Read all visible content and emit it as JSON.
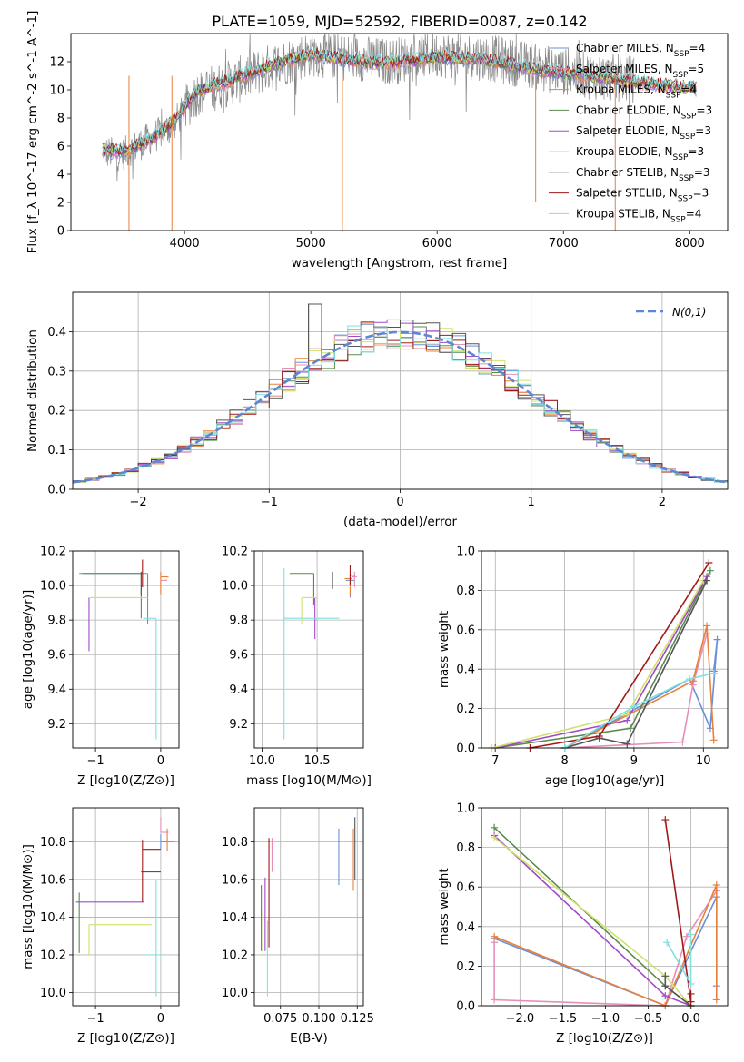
{
  "title": "PLATE=1059, MJD=52592, FIBERID=0087, z=0.142",
  "colors": {
    "chabrier_miles": "#6b8fd6",
    "salpeter_miles": "#e58fb8",
    "kroupa_miles": "#e8813a",
    "chabrier_elodie": "#5b8a4e",
    "salpeter_elodie": "#a24bc8",
    "kroupa_elodie": "#cfe26a",
    "chabrier_stelib": "#555555",
    "salpeter_stelib": "#a01a1a",
    "kroupa_stelib": "#7fe0e0",
    "data": "#888888",
    "normal": "#5b87d4"
  },
  "chart_data": [
    {
      "type": "line",
      "name": "spectrum",
      "xlabel": "wavelength [Angstrom, rest frame]",
      "ylabel": "Flux [f_λ 10^-17 erg cm^-2 s^-1 A^-1]",
      "xlim": [
        3100,
        8300
      ],
      "ylim": [
        0,
        14
      ],
      "xticks": [
        "4000",
        "5000",
        "6000",
        "7000",
        "8000"
      ],
      "yticks": [
        "0",
        "2",
        "4",
        "6",
        "8",
        "10",
        "12"
      ],
      "x": [
        3350,
        3500,
        3700,
        3900,
        4100,
        4400,
        4700,
        5000,
        5300,
        5600,
        6000,
        6400,
        6800,
        7200,
        7600,
        8050
      ],
      "data_flux": [
        5.6,
        5.4,
        6.4,
        7.4,
        9.8,
        10.6,
        11.7,
        12.6,
        12.3,
        12.0,
        12.5,
        12.3,
        11.6,
        11.0,
        10.7,
        10.2
      ],
      "model_flux": [
        5.7,
        5.6,
        6.3,
        7.6,
        9.9,
        10.8,
        11.8,
        12.5,
        12.1,
        11.9,
        12.3,
        12.1,
        11.4,
        11.0,
        10.5,
        10.1
      ],
      "grid": false,
      "legend": [
        "Chabrier MILES, N_SSP=4",
        "Salpeter MILES, N_SSP=5",
        "Kroupa MILES, N_SSP=4",
        "Chabrier ELODIE, N_SSP=3",
        "Salpeter ELODIE, N_SSP=3",
        "Kroupa ELODIE, N_SSP=3",
        "Chabrier STELIB, N_SSP=3",
        "Salpeter STELIB, N_SSP=3",
        "Kroupa STELIB, N_SSP=4"
      ]
    },
    {
      "type": "line",
      "name": "residual-histogram",
      "xlabel": "(data-model)/error",
      "ylabel": "Normed distribution",
      "xlim": [
        -2.5,
        2.5
      ],
      "ylim": [
        0,
        0.5
      ],
      "xticks": [
        "−2",
        "−1",
        "0",
        "1",
        "2"
      ],
      "yticks": [
        "0.0",
        "0.1",
        "0.2",
        "0.3",
        "0.4"
      ],
      "legend": [
        "N(0,1)"
      ],
      "grid": true
    },
    {
      "type": "scatter",
      "name": "age-vs-Z",
      "xlabel": "Z [log10(Z/Z⊙)]",
      "ylabel": "age [log10(age/yr)]",
      "xlim": [
        -1.35,
        0.28
      ],
      "ylim": [
        9.06,
        10.2
      ],
      "xticks": [
        "−1",
        "0"
      ],
      "yticks": [
        "9.2",
        "9.4",
        "9.6",
        "9.8",
        "10.0",
        "10.2"
      ],
      "points": [
        {
          "x": -0.2,
          "xerr": [
            1.05,
            0.0
          ],
          "y": 10.07,
          "yerr": [
            0.29,
            0.0
          ]
        },
        {
          "x": 0.0,
          "xerr": [
            0.0,
            0.1
          ],
          "y": 10.03,
          "yerr": [
            0.08,
            0.04
          ]
        },
        {
          "x": 0.0,
          "xerr": [
            0.0,
            0.12
          ],
          "y": 10.05,
          "yerr": [
            0.1,
            0.03
          ]
        },
        {
          "x": -0.3,
          "xerr": [
            0.9,
            0.0
          ],
          "y": 10.07,
          "yerr": [
            0.26,
            0.0
          ]
        },
        {
          "x": -1.1,
          "xerr": [
            0.0,
            0.0
          ],
          "y": 9.93,
          "yerr": [
            0.31,
            0.0
          ]
        },
        {
          "x": -0.2,
          "xerr": [
            0.9,
            0.0
          ],
          "y": 9.93,
          "yerr": [
            0.0,
            0.0
          ]
        },
        {
          "x": -0.3,
          "xerr": [
            0.0,
            0.0
          ],
          "y": 10.06,
          "yerr": [
            0.12,
            0.02
          ]
        },
        {
          "x": -0.28,
          "xerr": [
            0.0,
            0.0
          ],
          "y": 10.07,
          "yerr": [
            0.08,
            0.08
          ]
        },
        {
          "x": -0.07,
          "xerr": [
            0.2,
            0.0
          ],
          "y": 9.81,
          "yerr": [
            0.7,
            0.0
          ]
        }
      ]
    },
    {
      "type": "scatter",
      "name": "age-vs-mass",
      "xlabel": "mass [log10(M/M⊙)]",
      "ylabel": "",
      "xlim": [
        9.93,
        10.92
      ],
      "ylim": [
        9.06,
        10.2
      ],
      "xticks": [
        "10.0",
        "10.5"
      ],
      "yticks": [
        "9.2",
        "9.4",
        "9.6",
        "9.8",
        "10.0",
        "10.2"
      ],
      "points": [
        {
          "x": 10.8,
          "xerr": [
            0.04,
            0.04
          ],
          "y": 10.03,
          "yerr": [
            0.1,
            0.04
          ]
        },
        {
          "x": 10.84,
          "xerr": [
            0.02,
            0.02
          ],
          "y": 10.05,
          "yerr": [
            0.06,
            0.03
          ]
        },
        {
          "x": 10.8,
          "xerr": [
            0.05,
            0.02
          ],
          "y": 10.04,
          "yerr": [
            0.1,
            0.02
          ]
        },
        {
          "x": 10.47,
          "xerr": [
            0.22,
            0.0
          ],
          "y": 10.07,
          "yerr": [
            0.18,
            0.0
          ]
        },
        {
          "x": 10.48,
          "xerr": [
            0.0,
            0.0
          ],
          "y": 9.93,
          "yerr": [
            0.24,
            0.0
          ]
        },
        {
          "x": 10.36,
          "xerr": [
            0.0,
            0.14
          ],
          "y": 9.93,
          "yerr": [
            0.15,
            0.0
          ]
        },
        {
          "x": 10.64,
          "xerr": [
            0.0,
            0.0
          ],
          "y": 10.06,
          "yerr": [
            0.08,
            0.02
          ]
        },
        {
          "x": 10.8,
          "xerr": [
            0.0,
            0.05
          ],
          "y": 10.06,
          "yerr": [
            0.06,
            0.06
          ]
        },
        {
          "x": 10.2,
          "xerr": [
            0.0,
            0.5
          ],
          "y": 9.81,
          "yerr": [
            0.7,
            0.29
          ]
        }
      ]
    },
    {
      "type": "line",
      "name": "mass-weight-vs-age",
      "xlabel": "age [log10(age/yr)]",
      "ylabel": "mass weight",
      "xlim": [
        6.8,
        10.35
      ],
      "ylim": [
        0,
        1
      ],
      "xticks": [
        "7",
        "8",
        "9",
        "10"
      ],
      "yticks": [
        "0.0",
        "0.2",
        "0.4",
        "0.6",
        "0.8",
        "1.0"
      ],
      "grid": true,
      "series": [
        {
          "x": [
            8.0,
            9.8,
            10.1,
            10.2,
            10.15
          ],
          "y": [
            0.0,
            0.35,
            0.1,
            0.55,
            0.39
          ]
        },
        {
          "x": [
            8.0,
            9.7,
            9.85,
            10.05
          ],
          "y": [
            0.0,
            0.03,
            0.32,
            0.58
          ]
        },
        {
          "x": [
            8.0,
            9.85,
            10.05,
            10.15
          ],
          "y": [
            0.0,
            0.34,
            0.62,
            0.04
          ]
        },
        {
          "x": [
            7.0,
            8.95,
            10.1
          ],
          "y": [
            0.0,
            0.1,
            0.9
          ]
        },
        {
          "x": [
            7.0,
            8.9,
            10.05
          ],
          "y": [
            0.0,
            0.14,
            0.87
          ]
        },
        {
          "x": [
            6.95,
            8.9,
            10.0
          ],
          "y": [
            0.0,
            0.17,
            0.85
          ]
        },
        {
          "x": [
            8.0,
            8.5,
            8.9,
            10.05
          ],
          "y": [
            0.0,
            0.05,
            0.02,
            0.85
          ]
        },
        {
          "x": [
            7.5,
            8.5,
            10.08
          ],
          "y": [
            0.0,
            0.06,
            0.94
          ]
        },
        {
          "x": [
            8.0,
            9.0,
            9.8,
            10.15
          ],
          "y": [
            0.0,
            0.21,
            0.35,
            0.38
          ]
        }
      ]
    },
    {
      "type": "scatter",
      "name": "mass-vs-Z",
      "xlabel": "Z [log10(Z/Z⊙)]",
      "ylabel": "mass [log10(M/M⊙)]",
      "xlim": [
        -1.35,
        0.28
      ],
      "ylim": [
        9.93,
        10.98
      ],
      "xticks": [
        "−1",
        "0"
      ],
      "yticks": [
        "10.0",
        "10.2",
        "10.4",
        "10.6",
        "10.8"
      ],
      "points": [
        {
          "x": 0.0,
          "xerr": [
            0.0,
            0.18
          ],
          "y": 10.8,
          "yerr": [
            0.04,
            0.04
          ]
        },
        {
          "x": 0.0,
          "xerr": [
            0.0,
            0.12
          ],
          "y": 10.85,
          "yerr": [
            0.0,
            0.08
          ]
        },
        {
          "x": 0.1,
          "xerr": [
            0.0,
            0.12
          ],
          "y": 10.8,
          "yerr": [
            0.05,
            0.07
          ]
        },
        {
          "x": -1.25,
          "xerr": [
            0.0,
            0.0
          ],
          "y": 10.47,
          "yerr": [
            0.26,
            0.06
          ]
        },
        {
          "x": -0.25,
          "xerr": [
            1.05,
            0.0
          ],
          "y": 10.48,
          "yerr": [
            0.0,
            0.0
          ]
        },
        {
          "x": -1.1,
          "xerr": [
            0.0,
            0.96
          ],
          "y": 10.36,
          "yerr": [
            0.16,
            0.0
          ]
        },
        {
          "x": -0.3,
          "xerr": [
            0.0,
            0.3
          ],
          "y": 10.64,
          "yerr": [
            0.0,
            0.0
          ]
        },
        {
          "x": -0.28,
          "xerr": [
            0.0,
            0.28
          ],
          "y": 10.76,
          "yerr": [
            0.28,
            0.05
          ]
        },
        {
          "x": -0.07,
          "xerr": [
            0.15,
            0.1
          ],
          "y": 10.2,
          "yerr": [
            0.22,
            0.4
          ]
        }
      ]
    },
    {
      "type": "scatter",
      "name": "mass-vs-ebv",
      "xlabel": "E(B-V)",
      "ylabel": "",
      "xlim": [
        0.058,
        0.129
      ],
      "ylim": [
        9.93,
        10.98
      ],
      "xticks": [
        "0.075",
        "0.100",
        "0.125"
      ],
      "yticks": [
        "10.0",
        "10.2",
        "10.4",
        "10.6",
        "10.8"
      ],
      "points": [
        {
          "x": 0.113,
          "y": 10.72,
          "yerr": [
            0.15,
            0.15
          ]
        },
        {
          "x": 0.0695,
          "y": 10.72,
          "yerr": [
            0.08,
            0.1
          ]
        },
        {
          "x": 0.1225,
          "y": 10.72,
          "yerr": [
            0.18,
            0.15
          ]
        },
        {
          "x": 0.0625,
          "y": 10.37,
          "yerr": [
            0.15,
            0.2
          ]
        },
        {
          "x": 0.065,
          "y": 10.47,
          "yerr": [
            0.25,
            0.14
          ]
        },
        {
          "x": 0.0635,
          "y": 10.36,
          "yerr": [
            0.16,
            0.08
          ]
        },
        {
          "x": 0.1235,
          "y": 10.7,
          "yerr": [
            0.1,
            0.23
          ]
        },
        {
          "x": 0.0675,
          "y": 10.58,
          "yerr": [
            0.34,
            0.24
          ]
        },
        {
          "x": 0.0665,
          "y": 10.2,
          "yerr": [
            0.22,
            0.18
          ]
        }
      ]
    },
    {
      "type": "line",
      "name": "mass-weight-vs-Z",
      "xlabel": "Z [log10(Z/Z⊙)]",
      "ylabel": "mass weight",
      "xlim": [
        -2.45,
        0.43
      ],
      "ylim": [
        0,
        1
      ],
      "xticks": [
        "−2.0",
        "−1.5",
        "−1.0",
        "−0.5",
        "0.0"
      ],
      "yticks": [
        "0.0",
        "0.2",
        "0.4",
        "0.6",
        "0.8",
        "1.0"
      ],
      "grid": true,
      "series": [
        {
          "x": [
            -2.3,
            -0.3,
            0.3,
            0.3
          ],
          "y": [
            0.34,
            0.0,
            0.55,
            0.1
          ]
        },
        {
          "x": [
            -2.3,
            -2.3,
            -0.3,
            -0.05,
            0.3
          ],
          "y": [
            0.32,
            0.03,
            0.0,
            0.35,
            0.58
          ]
        },
        {
          "x": [
            -2.3,
            -0.3,
            0.3,
            0.3
          ],
          "y": [
            0.35,
            0.0,
            0.61,
            0.03
          ]
        },
        {
          "x": [
            -2.3,
            -0.3,
            0.0
          ],
          "y": [
            0.9,
            0.1,
            0.0
          ]
        },
        {
          "x": [
            -2.3,
            -0.3,
            0.0
          ],
          "y": [
            0.86,
            0.05,
            0.0
          ]
        },
        {
          "x": [
            -2.3,
            -0.3,
            0.0
          ],
          "y": [
            0.85,
            0.15,
            0.0
          ]
        },
        {
          "x": [
            -0.3,
            -0.3,
            0.0
          ],
          "y": [
            0.15,
            0.1,
            0.0
          ]
        },
        {
          "x": [
            -0.3,
            0.0,
            0.0
          ],
          "y": [
            0.94,
            0.02,
            0.06
          ]
        },
        {
          "x": [
            -0.28,
            0.0,
            0.0
          ],
          "y": [
            0.32,
            0.11,
            0.36
          ]
        }
      ]
    }
  ]
}
